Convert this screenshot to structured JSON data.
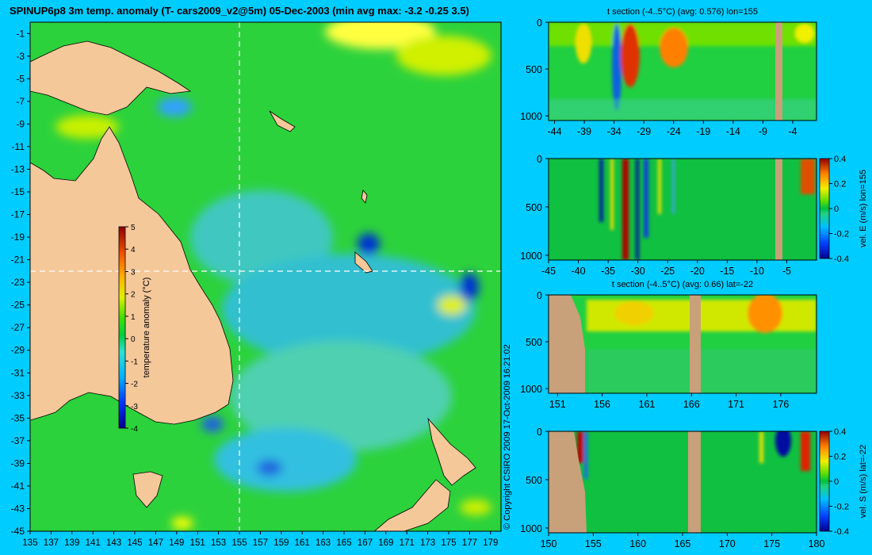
{
  "main_map": {
    "title": "SPINUP6p8 3m temp. anomaly (T- cars2009_v2@5m) 05-Dec-2003 (min avg max: -3.2 -0.25 3.5)",
    "x_ticks": [
      "135",
      "137",
      "139",
      "141",
      "143",
      "145",
      "147",
      "149",
      "151",
      "153",
      "155",
      "157",
      "159",
      "161",
      "163",
      "165",
      "167",
      "169",
      "171",
      "173",
      "175",
      "177",
      "179"
    ],
    "y_ticks": [
      "-1",
      "-3",
      "-5",
      "-7",
      "-9",
      "-11",
      "-13",
      "-15",
      "-17",
      "-19",
      "-21",
      "-23",
      "-25",
      "-27",
      "-29",
      "-31",
      "-33",
      "-35",
      "-37",
      "-39",
      "-41",
      "-43",
      "-45"
    ],
    "xlim": [
      135,
      180
    ],
    "ylim": [
      -45,
      0
    ],
    "section_lon": 155,
    "section_lat": -22,
    "colorbar": {
      "label": "temperature anomaly (°C)",
      "ticks": [
        "5",
        "4",
        "3",
        "2",
        "1",
        "0",
        "-1",
        "-2",
        "-3",
        "-4"
      ],
      "range": [
        -4,
        5
      ]
    },
    "copyright": "© Copyright CSIRO 2009   17-Oct-2009 16:21:02"
  },
  "colors": {
    "background": "#00ccff",
    "land": "#f5c89a",
    "mask": "#c8a07a",
    "section_line": "#ffffff"
  },
  "chart_data": [
    {
      "type": "heatmap",
      "title": "SPINUP6p8 3m temp. anomaly (T- cars2009_v2@5m) 05-Dec-2003 (min avg max: -3.2 -0.25 3.5)",
      "xlabel": "",
      "ylabel": "",
      "xlim": [
        135,
        180
      ],
      "ylim": [
        -45,
        0
      ],
      "cbar_label": "temperature anomaly (°C)",
      "cbar_range": [
        -4,
        5
      ],
      "stats": {
        "min": -3.2,
        "avg": -0.25,
        "max": 3.5
      },
      "grid": false
    },
    {
      "type": "heatmap",
      "title": "t section (-4..5°C) (avg: 0.576) lon=155",
      "x_ticks": [
        "-44",
        "-39",
        "-34",
        "-29",
        "-24",
        "-19",
        "-14",
        "-9",
        "-4"
      ],
      "y_ticks": [
        "0",
        "500",
        "1000"
      ],
      "xlim": [
        -45,
        0
      ],
      "ylim": [
        1050,
        0
      ],
      "avg": 0.576
    },
    {
      "type": "heatmap",
      "title": "",
      "x_ticks": [
        "-45",
        "-40",
        "-35",
        "-30",
        "-25",
        "-20",
        "-15",
        "-10",
        "-5"
      ],
      "y_ticks": [
        "0",
        "500",
        "1000"
      ],
      "xlim": [
        -45,
        0
      ],
      "ylim": [
        1050,
        0
      ],
      "cbar_label": "vel. E (m/s) lon=155",
      "cbar_ticks": [
        "0.4",
        "0.2",
        "0",
        "-0.2",
        "-0.4"
      ]
    },
    {
      "type": "heatmap",
      "title": "t section (-4..5°C) (avg: 0.66) lat=-22",
      "x_ticks": [
        "151",
        "156",
        "161",
        "166",
        "171",
        "176"
      ],
      "y_ticks": [
        "0",
        "500",
        "1000"
      ],
      "xlim": [
        150,
        180
      ],
      "ylim": [
        1050,
        0
      ],
      "avg": 0.66
    },
    {
      "type": "heatmap",
      "title": "",
      "x_ticks": [
        "150",
        "155",
        "160",
        "165",
        "170",
        "175",
        "180"
      ],
      "y_ticks": [
        "0",
        "500",
        "1000"
      ],
      "xlim": [
        150,
        180
      ],
      "ylim": [
        1050,
        0
      ],
      "cbar_label": "vel. S (m/s) lat=-22",
      "cbar_ticks": [
        "0.4",
        "0.2",
        "0",
        "-0.2",
        "-0.4"
      ]
    }
  ],
  "panels": [
    {
      "title": "t section (-4..5°C) (avg: 0.576) lon=155",
      "x_ticks": [
        "-44",
        "-39",
        "-34",
        "-29",
        "-24",
        "-19",
        "-14",
        "-9",
        "-4"
      ],
      "y_ticks": [
        "0",
        "500",
        "1000"
      ]
    },
    {
      "title": "",
      "x_ticks": [
        "-45",
        "-40",
        "-35",
        "-30",
        "-25",
        "-20",
        "-15",
        "-10",
        "-5"
      ],
      "y_ticks": [
        "0",
        "500",
        "1000"
      ],
      "cbar_label": "vel. E (m/s) lon=155",
      "cbar_ticks": [
        "0.4",
        "0.2",
        "0",
        "-0.2",
        "-0.4"
      ]
    },
    {
      "title": "t section (-4..5°C) (avg: 0.66) lat=-22",
      "x_ticks": [
        "151",
        "156",
        "161",
        "166",
        "171",
        "176"
      ],
      "y_ticks": [
        "0",
        "500",
        "1000"
      ]
    },
    {
      "title": "",
      "x_ticks": [
        "150",
        "155",
        "160",
        "165",
        "170",
        "175",
        "180"
      ],
      "y_ticks": [
        "0",
        "500",
        "1000"
      ],
      "cbar_label": "vel. S (m/s) lat=-22",
      "cbar_ticks": [
        "0.4",
        "0.2",
        "0",
        "-0.2",
        "-0.4"
      ]
    }
  ]
}
